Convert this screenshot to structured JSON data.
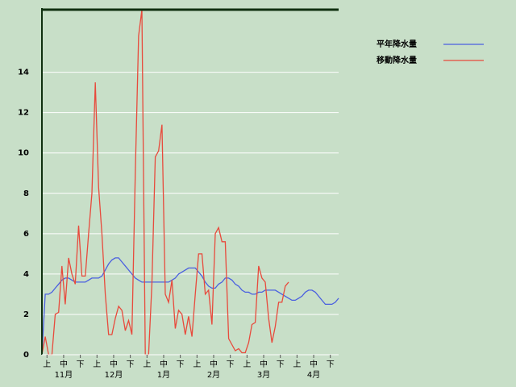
{
  "chart_data": {
    "type": "line",
    "categories": [
      null,
      null,
      "上",
      null,
      null,
      null,
      null,
      "中",
      null,
      null,
      null,
      null,
      "下",
      null,
      null,
      null,
      null,
      "上",
      null,
      null,
      null,
      null,
      "中",
      null,
      null,
      null,
      null,
      "下",
      null,
      null,
      null,
      null,
      "上",
      null,
      null,
      null,
      null,
      "中",
      null,
      null,
      null,
      null,
      "下",
      null,
      null,
      null,
      null,
      "上",
      null,
      null,
      null,
      null,
      "中",
      null,
      null,
      null,
      null,
      "下",
      null,
      null,
      null,
      null,
      "上",
      null,
      null,
      null,
      null,
      "中",
      null,
      null,
      null,
      null,
      "下",
      null,
      null,
      null,
      null,
      "上",
      null,
      null,
      null,
      null,
      "中",
      null,
      null,
      null,
      null,
      "下",
      null,
      null
    ],
    "month_labels": [
      "11月",
      "12月",
      "1月",
      "2月",
      "3月",
      "4月"
    ],
    "series": [
      {
        "name": "平年降水量",
        "color": "#4a5fe0",
        "values": [
          0,
          3.0,
          3.0,
          3.1,
          3.3,
          3.5,
          3.7,
          3.8,
          3.8,
          3.7,
          3.6,
          3.6,
          3.6,
          3.6,
          3.7,
          3.8,
          3.8,
          3.8,
          3.9,
          4.2,
          4.5,
          4.7,
          4.8,
          4.8,
          4.6,
          4.4,
          4.2,
          4.0,
          3.8,
          3.7,
          3.6,
          3.6,
          3.6,
          3.6,
          3.6,
          3.6,
          3.6,
          3.6,
          3.6,
          3.7,
          3.8,
          4.0,
          4.1,
          4.2,
          4.3,
          4.3,
          4.3,
          4.1,
          3.9,
          3.6,
          3.4,
          3.3,
          3.3,
          3.5,
          3.6,
          3.8,
          3.8,
          3.7,
          3.5,
          3.4,
          3.2,
          3.1,
          3.1,
          3.0,
          3.0,
          3.1,
          3.1,
          3.2,
          3.2,
          3.2,
          3.2,
          3.1,
          3.0,
          2.9,
          2.8,
          2.7,
          2.7,
          2.8,
          2.9,
          3.1,
          3.2,
          3.2,
          3.1,
          2.9,
          2.7,
          2.5,
          2.5,
          2.5,
          2.6,
          2.8
        ]
      },
      {
        "name": "移動降水量",
        "color": "#e84a3c",
        "values": [
          0,
          0.9,
          0,
          0,
          2.0,
          2.1,
          4.4,
          2.5,
          4.8,
          4.0,
          3.5,
          6.4,
          3.9,
          3.9,
          6.0,
          8.0,
          13.5,
          8.3,
          6.0,
          3.0,
          1.0,
          1.0,
          1.8,
          2.4,
          2.2,
          1.2,
          1.7,
          1.0,
          9.0,
          15.8,
          17.1,
          0,
          0,
          3.5,
          9.8,
          10.1,
          11.4,
          3.0,
          2.6,
          3.7,
          1.3,
          2.2,
          2.0,
          1.0,
          1.9,
          0.9,
          3.0,
          5.0,
          5.0,
          3.0,
          3.2,
          1.5,
          6.0,
          6.3,
          5.6,
          5.6,
          0.8,
          0.5,
          0.2,
          0.3,
          0.1,
          0.1,
          0.6,
          1.5,
          1.6,
          4.4,
          3.8,
          3.6,
          1.8,
          0.6,
          1.4,
          2.6,
          2.6,
          3.4,
          3.6,
          null,
          null,
          null,
          null,
          null,
          null,
          null,
          null,
          null,
          null,
          null,
          null,
          null,
          null,
          null
        ]
      }
    ],
    "ylim": [
      0,
      17.1
    ],
    "yticks": [
      0,
      2,
      4,
      6,
      8,
      10,
      12,
      14
    ],
    "grid": true,
    "legend": "right"
  }
}
